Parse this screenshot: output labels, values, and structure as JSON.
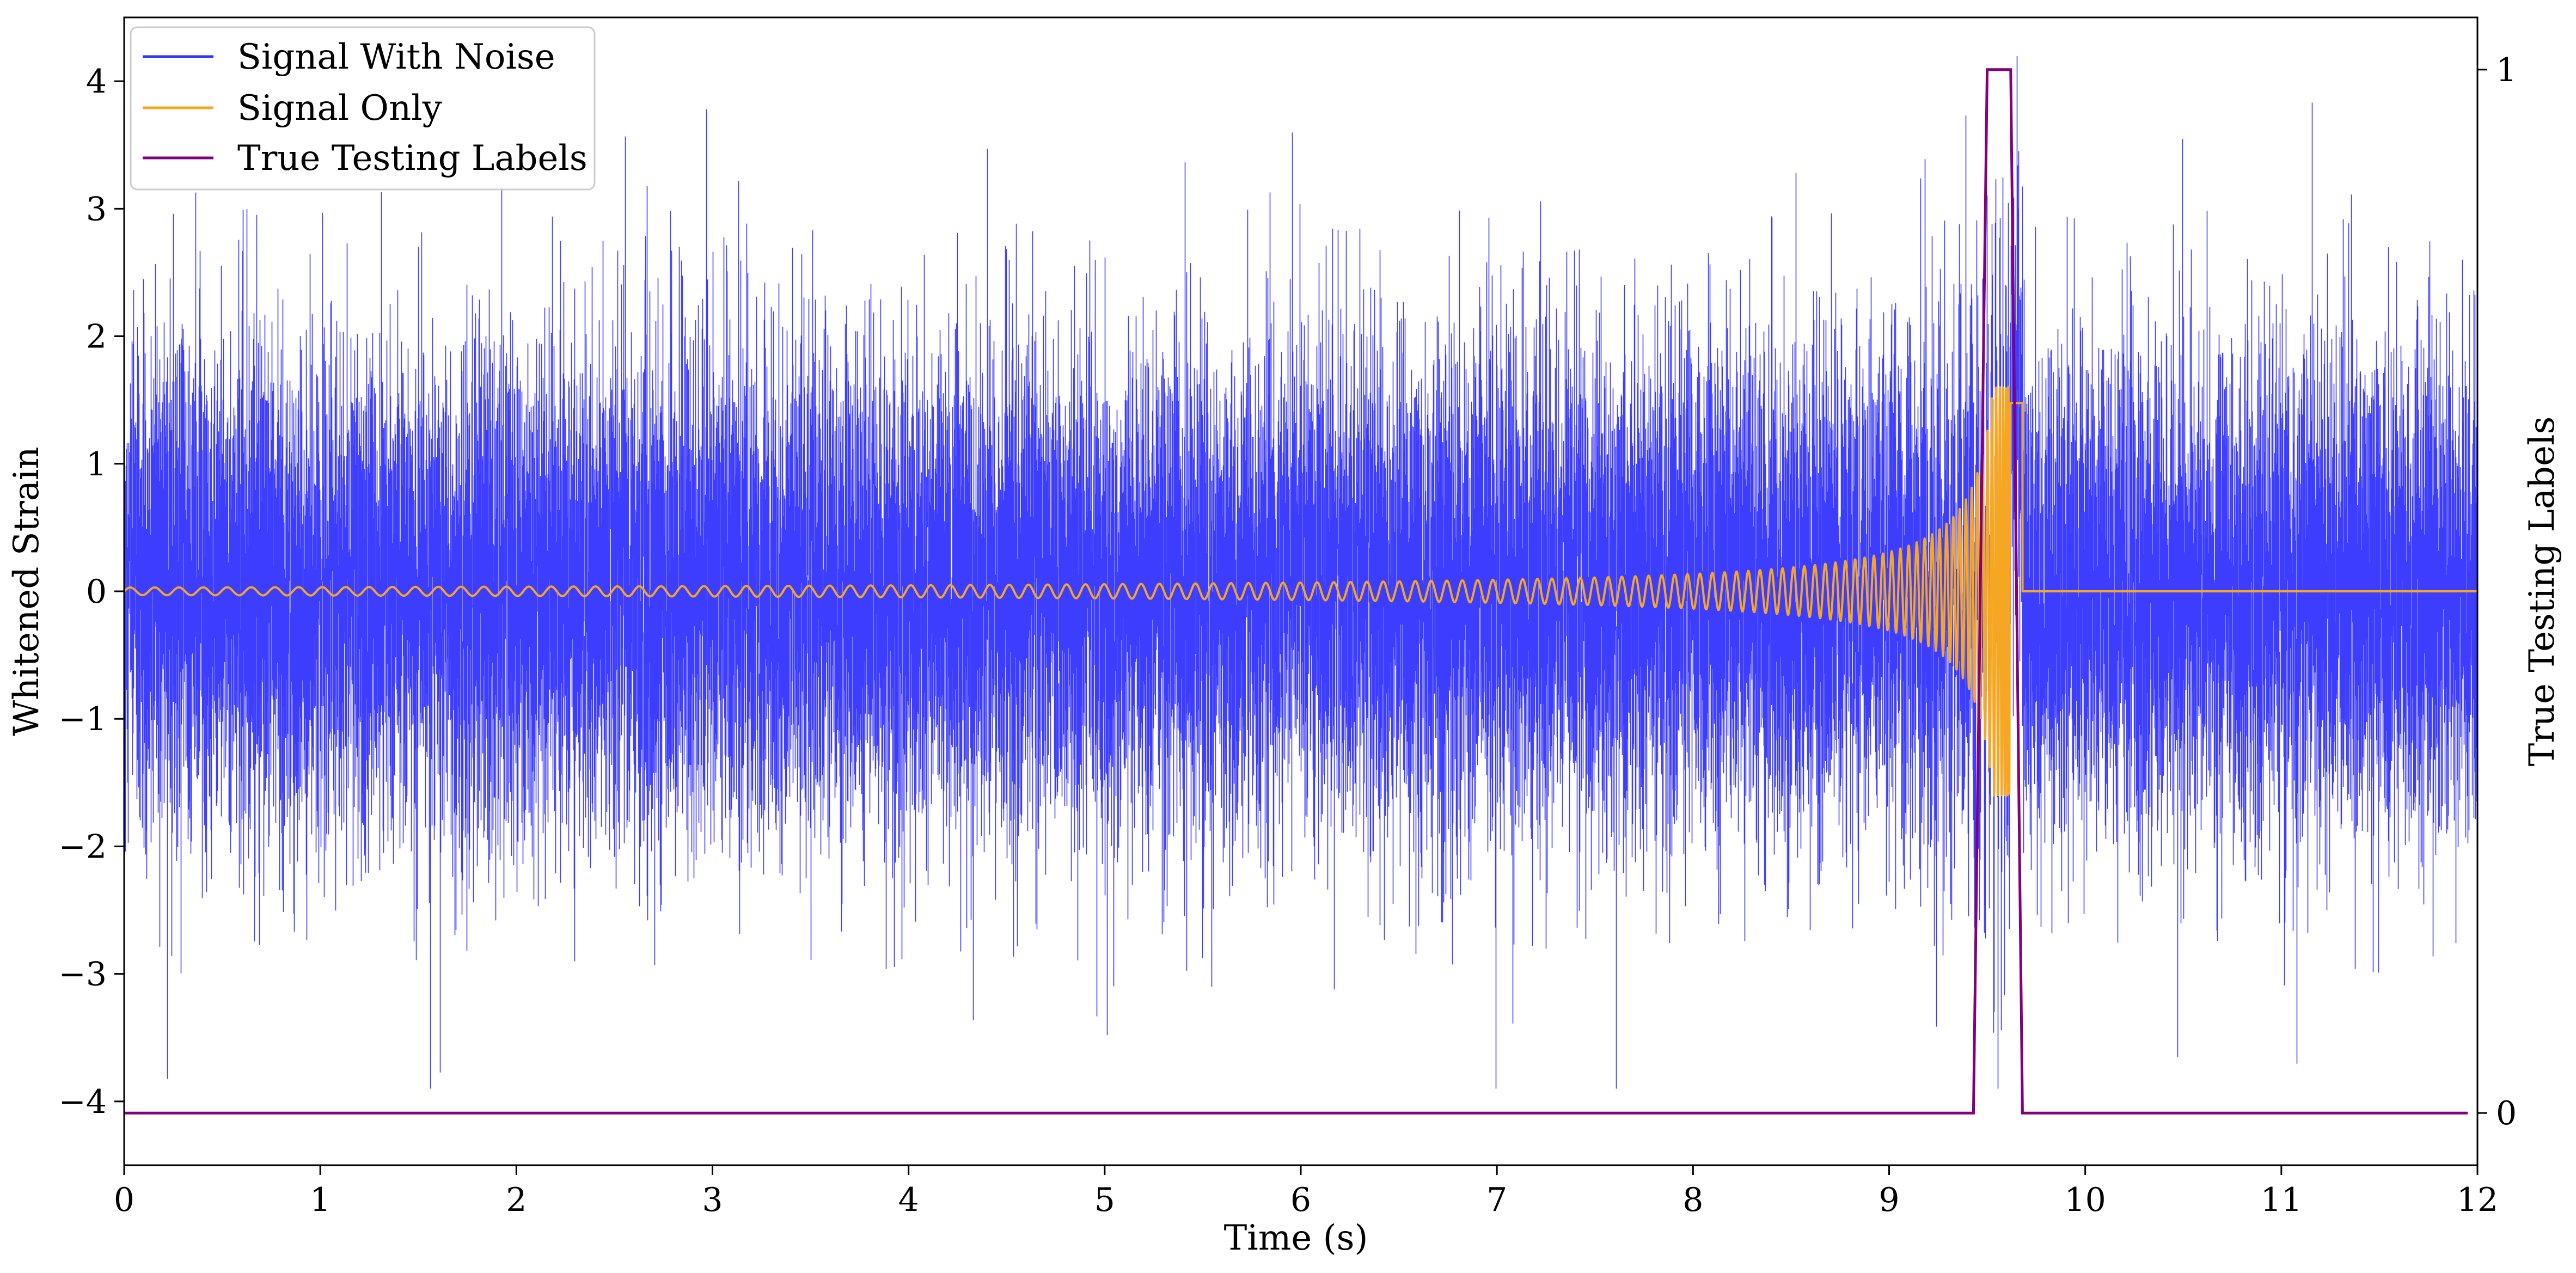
{
  "chart_data": {
    "type": "line",
    "xlabel": "Time (s)",
    "ylabel": "Whitened Strain",
    "y2label": "True Testing Labels",
    "xlim": [
      0,
      12
    ],
    "ylim": [
      -4.5,
      4.5
    ],
    "y2lim": [
      -0.05,
      1.05
    ],
    "xticks": [
      0,
      1,
      2,
      3,
      4,
      5,
      6,
      7,
      8,
      9,
      10,
      11,
      12
    ],
    "yticks": [
      -4,
      -3,
      -2,
      -1,
      0,
      1,
      2,
      3,
      4
    ],
    "y2ticks": [
      0,
      1
    ],
    "legend_position": "top-left",
    "grid": false,
    "series": [
      {
        "name": "Signal With Noise",
        "axis": "left",
        "color": "#3333ff",
        "kind": "noise",
        "x_range": [
          0,
          12
        ],
        "sample_rate_hz": 2048,
        "std": 0.95,
        "range_approx": [
          -3.9,
          4.2
        ]
      },
      {
        "name": "Signal Only",
        "axis": "left",
        "color": "#f5a623",
        "kind": "chirp",
        "x_range": [
          0,
          12
        ],
        "merger_time_s": 9.62,
        "peak_amplitude": 1.6,
        "amplitude_at_start": 0.03,
        "zero_after_s": 9.68
      },
      {
        "name": "True Testing Labels",
        "axis": "right",
        "color": "#800080",
        "kind": "step",
        "x": [
          0,
          9.43,
          9.5,
          9.62,
          9.68,
          11.95
        ],
        "y": [
          0,
          0,
          1,
          1,
          0,
          0
        ]
      }
    ]
  }
}
